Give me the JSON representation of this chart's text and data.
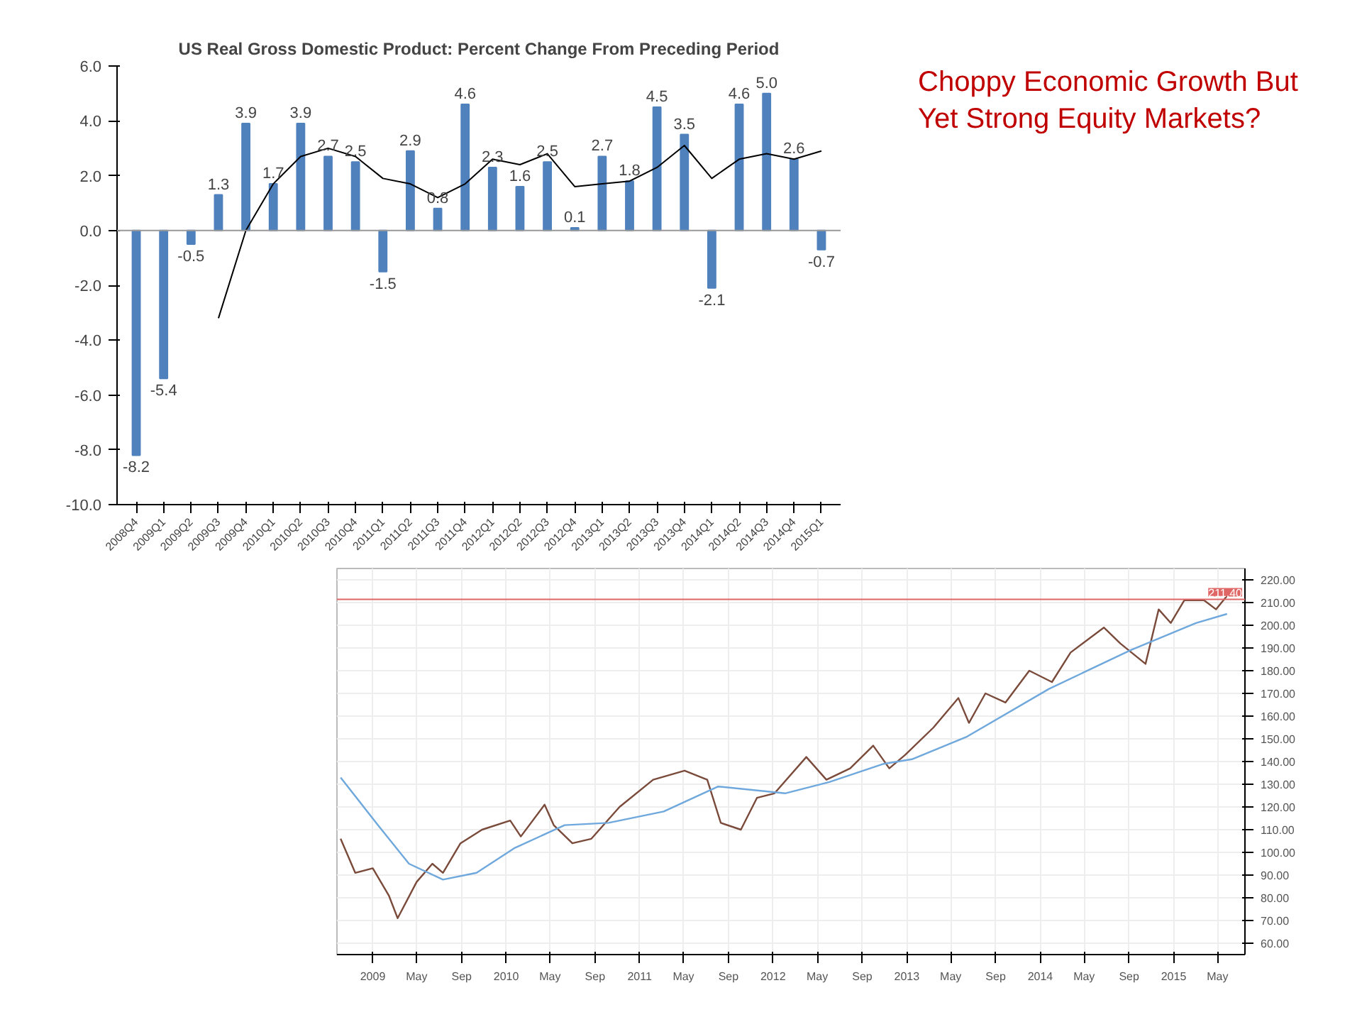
{
  "chart_data": [
    {
      "type": "bar",
      "title": "US Real Gross Domestic Product: Percent Change From Preceding Period",
      "categories": [
        "2008Q4",
        "2009Q1",
        "2009Q2",
        "2009Q3",
        "2009Q4",
        "2010Q1",
        "2010Q2",
        "2010Q3",
        "2010Q4",
        "2011Q1",
        "2011Q2",
        "2011Q3",
        "2011Q4",
        "2012Q1",
        "2012Q2",
        "2012Q3",
        "2012Q4",
        "2013Q1",
        "2013Q2",
        "2013Q3",
        "2013Q4",
        "2014Q1",
        "2014Q2",
        "2014Q3",
        "2014Q4",
        "2015Q1"
      ],
      "series": [
        {
          "type": "bar",
          "color": "#4f81bd",
          "values": [
            -8.2,
            -5.4,
            -0.5,
            1.3,
            3.9,
            1.7,
            3.9,
            2.7,
            2.5,
            -1.5,
            2.9,
            0.8,
            4.6,
            2.3,
            1.6,
            2.5,
            0.1,
            2.7,
            1.8,
            4.5,
            3.5,
            -2.1,
            4.6,
            5.0,
            2.6,
            -0.7
          ],
          "value_labels": [
            "-8.2",
            "-5.4",
            "-0.5",
            "1.3",
            "3.9",
            "1.7",
            "3.9",
            "2.7",
            "2.5",
            "-1.5",
            "2.9",
            "0.8",
            "4.6",
            "2.3",
            "1.6",
            "2.5",
            "0.1",
            "2.7",
            "1.8",
            "4.5",
            "3.5",
            "-2.1",
            "4.6",
            "5.0",
            "2.6",
            "-0.7"
          ]
        },
        {
          "type": "line",
          "color": "#000000",
          "values": [
            null,
            null,
            null,
            -3.2,
            0.0,
            1.7,
            2.7,
            3.0,
            2.7,
            1.9,
            1.7,
            1.2,
            1.7,
            2.6,
            2.4,
            2.8,
            1.6,
            1.7,
            1.8,
            2.3,
            3.1,
            1.9,
            2.6,
            2.8,
            2.6,
            2.9
          ]
        }
      ],
      "ylim": [
        -10,
        6
      ],
      "yticks": [
        {
          "value": -10,
          "label": "-10.0"
        },
        {
          "value": -8,
          "label": "-8.0"
        },
        {
          "value": -6,
          "label": "-6.0"
        },
        {
          "value": -4,
          "label": "-4.0"
        },
        {
          "value": -2,
          "label": "-2.0"
        },
        {
          "value": 0,
          "label": "0.0"
        },
        {
          "value": 2,
          "label": "2.0"
        },
        {
          "value": 4,
          "label": "4.0"
        },
        {
          "value": 6,
          "label": "6.0"
        }
      ],
      "grid": false,
      "ref_lines": [
        {
          "axis": "y",
          "value": 0,
          "color": "#999999"
        }
      ],
      "annotations": [
        "Choppy Economic Growth But Yet Strong Equity Markets?"
      ]
    },
    {
      "type": "line",
      "grid": true,
      "xlim": [
        "2008-09-25",
        "2015-07-15"
      ],
      "xticks": [
        {
          "value": "2009-01-01",
          "label": "2009"
        },
        {
          "value": "2009-05-01",
          "label": "May"
        },
        {
          "value": "2009-09-01",
          "label": "Sep"
        },
        {
          "value": "2010-01-01",
          "label": "2010"
        },
        {
          "value": "2010-05-01",
          "label": "May"
        },
        {
          "value": "2010-09-01",
          "label": "Sep"
        },
        {
          "value": "2011-01-01",
          "label": "2011"
        },
        {
          "value": "2011-05-01",
          "label": "May"
        },
        {
          "value": "2011-09-01",
          "label": "Sep"
        },
        {
          "value": "2012-01-01",
          "label": "2012"
        },
        {
          "value": "2012-05-01",
          "label": "May"
        },
        {
          "value": "2012-09-01",
          "label": "Sep"
        },
        {
          "value": "2013-01-01",
          "label": "2013"
        },
        {
          "value": "2013-05-01",
          "label": "May"
        },
        {
          "value": "2013-09-01",
          "label": "Sep"
        },
        {
          "value": "2014-01-01",
          "label": "2014"
        },
        {
          "value": "2014-05-01",
          "label": "May"
        },
        {
          "value": "2014-09-01",
          "label": "Sep"
        },
        {
          "value": "2015-01-01",
          "label": "2015"
        },
        {
          "value": "2015-05-01",
          "label": "May"
        }
      ],
      "ylim": [
        55,
        225
      ],
      "yticks": [
        {
          "value": 60,
          "label": "60.00"
        },
        {
          "value": 70,
          "label": "70.00"
        },
        {
          "value": 80,
          "label": "80.00"
        },
        {
          "value": 90,
          "label": "90.00"
        },
        {
          "value": 100,
          "label": "100.00"
        },
        {
          "value": 110,
          "label": "110.00"
        },
        {
          "value": 120,
          "label": "120.00"
        },
        {
          "value": 130,
          "label": "130.00"
        },
        {
          "value": 140,
          "label": "140.00"
        },
        {
          "value": 150,
          "label": "150.00"
        },
        {
          "value": 160,
          "label": "160.00"
        },
        {
          "value": 170,
          "label": "170.00"
        },
        {
          "value": 180,
          "label": "180.00"
        },
        {
          "value": 190,
          "label": "190.00"
        },
        {
          "value": 200,
          "label": "200.00"
        },
        {
          "value": 210,
          "label": "210.00"
        },
        {
          "value": 220,
          "label": "220.00"
        }
      ],
      "ref_lines": [
        {
          "axis": "y",
          "value": 211.4,
          "label": "211.40",
          "color": "#e06666"
        }
      ],
      "series": [
        {
          "color": "#7a4a3a",
          "x": [
            "2008-10-05",
            "2008-11-14",
            "2009-01-01",
            "2009-02-14",
            "2009-03-10",
            "2009-05-01",
            "2009-06-13",
            "2009-07-12",
            "2009-08-29",
            "2009-10-27",
            "2010-01-12",
            "2010-02-10",
            "2010-04-16",
            "2010-05-11",
            "2010-07-01",
            "2010-08-22",
            "2010-11-07",
            "2011-02-07",
            "2011-05-04",
            "2011-07-05",
            "2011-08-11",
            "2011-10-05",
            "2011-11-18",
            "2012-01-05",
            "2012-04-01",
            "2012-05-26",
            "2012-07-30",
            "2012-10-01",
            "2012-11-14",
            "2012-12-28",
            "2013-03-15",
            "2013-05-22",
            "2013-06-20",
            "2013-08-04",
            "2013-09-28",
            "2013-12-02",
            "2014-02-02",
            "2014-03-25",
            "2014-06-24",
            "2014-08-08",
            "2014-10-16",
            "2014-11-21",
            "2014-12-24",
            "2015-01-30",
            "2015-03-25",
            "2015-04-27",
            "2015-05-27"
          ],
          "values": [
            106,
            91,
            93,
            81,
            71,
            87,
            95,
            91,
            104,
            110,
            114,
            107,
            121,
            112,
            104,
            106,
            120,
            132,
            136,
            132,
            113,
            110,
            124,
            126,
            142,
            132,
            137,
            147,
            137,
            143,
            155,
            168,
            157,
            170,
            166,
            180,
            175,
            188,
            199,
            192,
            183,
            207,
            201,
            211,
            211,
            207,
            213
          ]
        },
        {
          "color": "#6fa8dc",
          "x": [
            "2008-10-05",
            "2009-01-15",
            "2009-04-10",
            "2009-07-12",
            "2009-10-12",
            "2010-01-25",
            "2010-06-10",
            "2010-10-08",
            "2011-03-08",
            "2011-08-04",
            "2012-02-03",
            "2012-06-03",
            "2012-10-30",
            "2013-01-15",
            "2013-06-15",
            "2014-01-25",
            "2014-09-05",
            "2015-03-03",
            "2015-05-27"
          ],
          "values": [
            133,
            112,
            95,
            88,
            91,
            102,
            112,
            113,
            118,
            129,
            126,
            131,
            139,
            141,
            151,
            172,
            189,
            201,
            205
          ]
        }
      ]
    }
  ]
}
